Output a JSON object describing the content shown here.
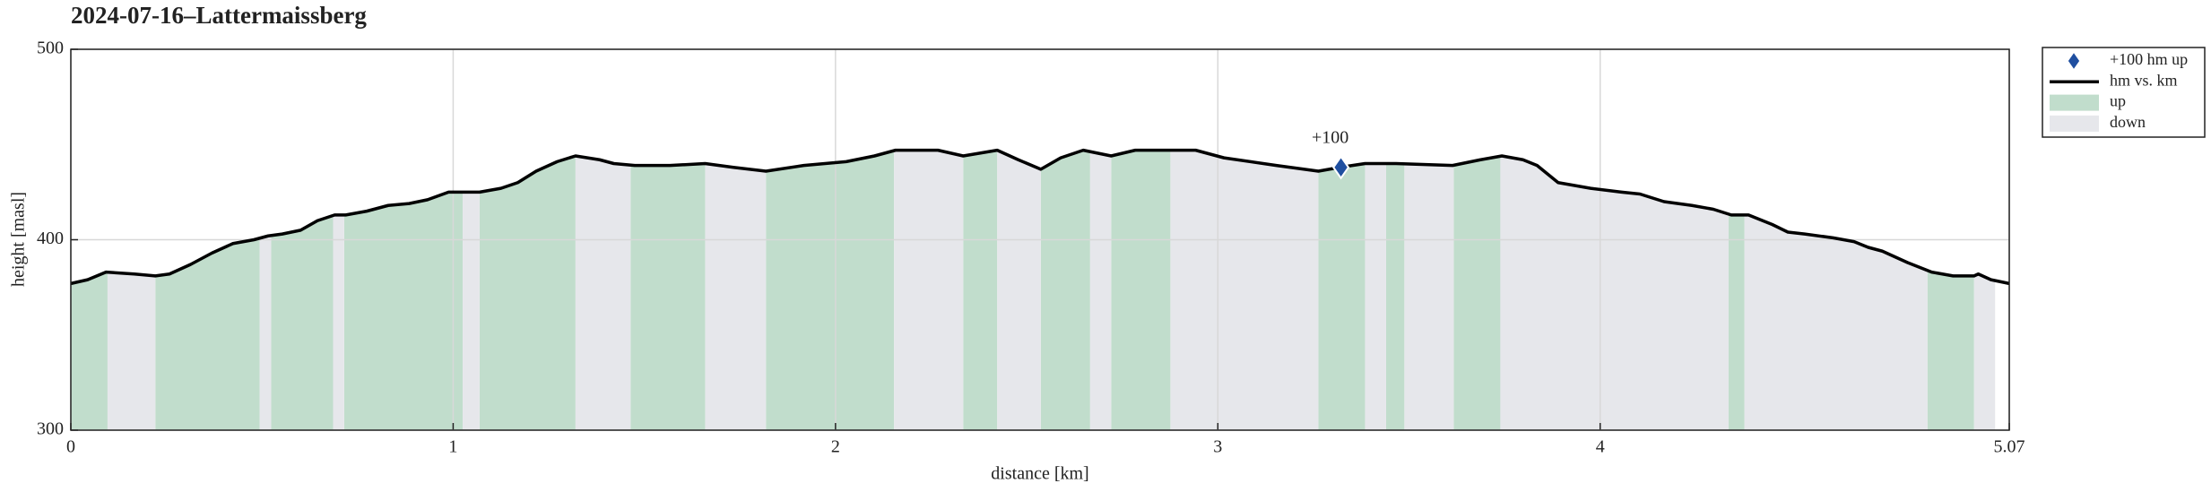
{
  "chart_data": {
    "type": "elevation",
    "title": "2024-07-16–Lattermaissberg",
    "x_label": "distance [km]",
    "y_label": "height [masl]",
    "xlim": [
      0,
      5.07
    ],
    "ylim": [
      300,
      500
    ],
    "xticks": [
      0,
      1,
      2,
      3,
      4,
      5.07
    ],
    "yticks": [
      300,
      400,
      500
    ],
    "grid": true,
    "series": [
      {
        "name": "hm vs. km",
        "color": "#000000",
        "x": [
          0,
          0.044,
          0.092,
          0.166,
          0.221,
          0.258,
          0.313,
          0.369,
          0.424,
          0.479,
          0.516,
          0.553,
          0.601,
          0.645,
          0.69,
          0.719,
          0.774,
          0.83,
          0.885,
          0.933,
          0.988,
          1.069,
          1.125,
          1.169,
          1.217,
          1.272,
          1.32,
          1.383,
          1.42,
          1.475,
          1.567,
          1.659,
          1.733,
          1.818,
          1.917,
          2.028,
          2.102,
          2.157,
          2.268,
          2.334,
          2.423,
          2.478,
          2.537,
          2.589,
          2.648,
          2.721,
          2.784,
          2.942,
          3.016,
          3.153,
          3.263,
          3.319,
          3.385,
          3.466,
          3.614,
          3.687,
          3.743,
          3.798,
          3.835,
          3.89,
          3.975,
          4.056,
          4.104,
          4.167,
          4.24,
          4.296,
          4.343,
          4.388,
          4.45,
          4.491,
          4.535,
          4.609,
          4.664,
          4.701,
          4.738,
          4.804,
          4.867,
          4.923,
          4.978,
          4.989,
          5.022,
          5.07
        ],
        "values": [
          377,
          379,
          383,
          382,
          381,
          382,
          387,
          393,
          398,
          400,
          402,
          403,
          405,
          410,
          413,
          413,
          415,
          418,
          419,
          421,
          425,
          425,
          427,
          430,
          436,
          441,
          444,
          442,
          440,
          439,
          439,
          440,
          438,
          436,
          439,
          441,
          444,
          447,
          447,
          444,
          447,
          442,
          437,
          443,
          447,
          444,
          447,
          447,
          443,
          439,
          436,
          438,
          440,
          440,
          439,
          442,
          444,
          442,
          439,
          430,
          427,
          425,
          424,
          420,
          418,
          416,
          413,
          413,
          408,
          404,
          403,
          401,
          399,
          396,
          394,
          388,
          383,
          381,
          381,
          382,
          379,
          377
        ]
      },
      {
        "name": "up",
        "color": "#c1ddcc",
        "intervals": [
          [
            0,
            0.096
          ],
          [
            0.221,
            0.494
          ],
          [
            0.524,
            0.686
          ],
          [
            0.715,
            1.025
          ],
          [
            1.069,
            1.32
          ],
          [
            1.464,
            1.659
          ],
          [
            1.818,
            2.153
          ],
          [
            2.334,
            2.423
          ],
          [
            2.537,
            2.666
          ],
          [
            2.721,
            2.876
          ],
          [
            3.263,
            3.385
          ],
          [
            3.44,
            3.488
          ],
          [
            3.617,
            3.739
          ],
          [
            4.336,
            4.377
          ],
          [
            4.856,
            4.978
          ]
        ]
      },
      {
        "name": "down",
        "color": "#e6e7eb",
        "intervals": [
          [
            0.096,
            0.221
          ],
          [
            0.494,
            0.524
          ],
          [
            0.686,
            0.715
          ],
          [
            1.025,
            1.069
          ],
          [
            1.32,
            1.464
          ],
          [
            1.659,
            1.818
          ],
          [
            2.153,
            2.334
          ],
          [
            2.423,
            2.537
          ],
          [
            2.666,
            2.721
          ],
          [
            2.876,
            3.263
          ],
          [
            3.385,
            3.44
          ],
          [
            3.488,
            3.617
          ],
          [
            3.739,
            4.336
          ],
          [
            4.377,
            4.856
          ],
          [
            4.978,
            5.033
          ]
        ]
      },
      {
        "name": "+100 hm up",
        "color": "#1f4fa0",
        "x": [
          3.322
        ],
        "values": [
          438
        ],
        "labels": [
          "+100"
        ]
      }
    ],
    "legend": "outside-right"
  }
}
